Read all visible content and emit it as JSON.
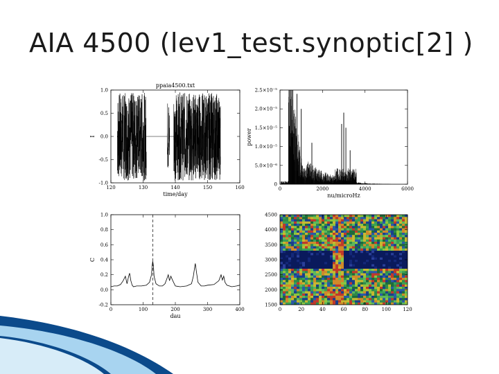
{
  "slide": {
    "title": "AIA 4500 (lev1_test.synoptic[2] )",
    "colors": {
      "dark_blue": "#0b4a8b",
      "light_blue": "#a8d4f0",
      "pale_blue": "#d7ecf8"
    }
  },
  "chart_data": [
    {
      "type": "line",
      "title": "ppaia4500.txt",
      "xlabel": "time/day",
      "ylabel": "I",
      "xlim": [
        120,
        160
      ],
      "ylim": [
        -1.0,
        1.0
      ],
      "xticks": [
        "120",
        "130",
        "140",
        "150",
        "160"
      ],
      "yticks": [
        "-1.0",
        "-0.5",
        "0.0",
        "0.5",
        "1.0"
      ],
      "series": [
        {
          "segments": [
            {
              "x": [
                122,
                131
              ],
              "kind": "noise",
              "amplitude": 0.95
            },
            {
              "x": [
                131,
                137.5
              ],
              "kind": "flat",
              "value": 0.0
            },
            {
              "x": [
                137.5,
                138.2
              ],
              "kind": "noise",
              "amplitude": 0.8
            },
            {
              "x": [
                138.2,
                139.5
              ],
              "kind": "flat",
              "value": 0.0
            },
            {
              "x": [
                139.5,
                154
              ],
              "kind": "noise",
              "amplitude": 0.95
            }
          ]
        }
      ]
    },
    {
      "type": "line",
      "title": "",
      "xlabel": "nu/microHz",
      "ylabel": "power",
      "xlim": [
        0,
        6000
      ],
      "ylim": [
        0,
        2.5e-05
      ],
      "xticks": [
        "0",
        "2000",
        "4000",
        "6000"
      ],
      "yticks": [
        "0",
        "5.0×10⁻⁶",
        "1.0×10⁻⁵",
        "1.5×10⁻⁵",
        "2.0×10⁻⁵",
        "2.5×10⁻⁵"
      ],
      "peaks": [
        {
          "x": 600,
          "y": 2.6e-05
        },
        {
          "x": 800,
          "y": 2.4e-05
        },
        {
          "x": 1000,
          "y": 2e-05
        },
        {
          "x": 1500,
          "y": 1.1e-05
        },
        {
          "x": 2900,
          "y": 1.6e-05
        },
        {
          "x": 3000,
          "y": 1.9e-05
        },
        {
          "x": 3100,
          "y": 1.5e-05
        },
        {
          "x": 3300,
          "y": 9e-06
        }
      ]
    },
    {
      "type": "line",
      "title": "",
      "xlabel": "dau",
      "ylabel": "C",
      "xlim": [
        0,
        400
      ],
      "ylim": [
        -0.2,
        1.0
      ],
      "xticks": [
        "0",
        "100",
        "200",
        "300",
        "400"
      ],
      "yticks": [
        "-0.2",
        "0.0",
        "0.2",
        "0.4",
        "0.6",
        "0.8",
        "1.0"
      ],
      "vline": 130,
      "series": [
        {
          "x": [
            0,
            10,
            20,
            30,
            38,
            45,
            50,
            55,
            58,
            62,
            66,
            70,
            80,
            95,
            110,
            120,
            126,
            128,
            130,
            132,
            134,
            140,
            150,
            160,
            168,
            174,
            178,
            182,
            186,
            192,
            200,
            215,
            235,
            250,
            256,
            260,
            262,
            264,
            270,
            280,
            290,
            300,
            320,
            335,
            342,
            346,
            350,
            354,
            360,
            375,
            390,
            400
          ],
          "y": [
            0.04,
            0.05,
            0.05,
            0.07,
            0.12,
            0.18,
            0.08,
            0.18,
            0.22,
            0.12,
            0.06,
            0.04,
            0.05,
            0.05,
            0.06,
            0.1,
            0.2,
            0.32,
            0.38,
            0.32,
            0.18,
            0.08,
            0.05,
            0.05,
            0.08,
            0.15,
            0.2,
            0.12,
            0.18,
            0.12,
            0.05,
            0.04,
            0.05,
            0.08,
            0.18,
            0.3,
            0.35,
            0.28,
            0.1,
            0.05,
            0.05,
            0.06,
            0.07,
            0.12,
            0.2,
            0.13,
            0.18,
            0.1,
            0.06,
            0.04,
            0.05,
            0.06
          ]
        }
      ]
    },
    {
      "type": "heatmap",
      "title": "",
      "xlabel": "",
      "ylabel": "",
      "xlim": [
        0,
        130
      ],
      "ylim": [
        1500,
        4500
      ],
      "xticks": [
        "0",
        "20",
        "40",
        "60",
        "80",
        "100",
        "120"
      ],
      "yticks": [
        "1500",
        "2000",
        "2500",
        "3000",
        "3500",
        "4000",
        "4500"
      ],
      "bands": [
        {
          "y": [
            2700,
            3300
          ],
          "value": "low",
          "color": "#0a1a5c"
        },
        {
          "y": [
            1500,
            2700
          ],
          "value": "mixed",
          "color": "#2f8a4a"
        },
        {
          "y": [
            3300,
            4500
          ],
          "value": "mixed",
          "color": "#2f8a4a"
        }
      ],
      "break_x": [
        55,
        65
      ]
    }
  ]
}
